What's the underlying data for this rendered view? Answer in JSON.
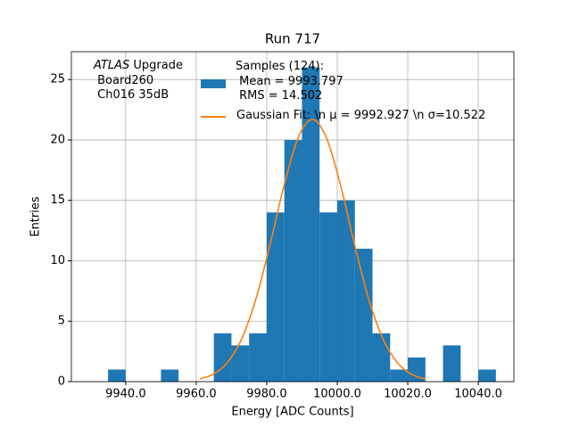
{
  "chart_data": {
    "type": "histogram",
    "title": "Run 717",
    "x_label": "Energy [ADC Counts]",
    "y_label": "Entries",
    "bins": [
      9935,
      9940,
      9945,
      9950,
      9955,
      9960,
      9965,
      9970,
      9975,
      9980,
      9985,
      9990,
      9995,
      10000,
      10005,
      10010,
      10015,
      10020,
      10025,
      10030,
      10035,
      10040,
      10045
    ],
    "series": [
      {
        "name": "Samples (124):\n Mean = 9993.797\n RMS = 14.502",
        "color": "#1f77b4",
        "values": [
          1,
          0,
          0,
          1,
          0,
          0,
          4,
          3,
          4,
          14,
          20,
          26,
          14,
          15,
          11,
          4,
          1,
          2,
          0,
          3,
          0,
          1
        ]
      }
    ],
    "fit": {
      "name": "Gaussian Fit: \\n μ = 9992.927 \\n σ=10.522",
      "color": "#ff7f0e",
      "x": [
        9961,
        9965,
        9969,
        9973,
        9977,
        9981,
        9985,
        9989,
        9993,
        9997,
        10001,
        10005,
        10009,
        10013,
        10017,
        10021,
        10025
      ],
      "y": [
        0.22,
        0.64,
        1.63,
        3.61,
        6.9,
        11.41,
        16.33,
        20.24,
        21.7,
        20.13,
        16.17,
        11.24,
        6.76,
        3.52,
        1.59,
        0.62,
        0.21
      ]
    },
    "annotation": [
      "ATLAS",
      " Upgrade",
      " Board260",
      " Ch016 35dB"
    ],
    "xlim": [
      9924.6,
      10050.1
    ],
    "ylim": [
      0,
      27.3
    ],
    "xticks": [
      {
        "value": 9940,
        "label": "9940.0"
      },
      {
        "value": 9960,
        "label": "9960.0"
      },
      {
        "value": 9980,
        "label": "9980.0"
      },
      {
        "value": 10000,
        "label": "10000.0"
      },
      {
        "value": 10020,
        "label": "10020.0"
      },
      {
        "value": 10040,
        "label": "10040.0"
      }
    ],
    "yticks": [
      0,
      5,
      10,
      15,
      20,
      25
    ],
    "grid": true
  }
}
